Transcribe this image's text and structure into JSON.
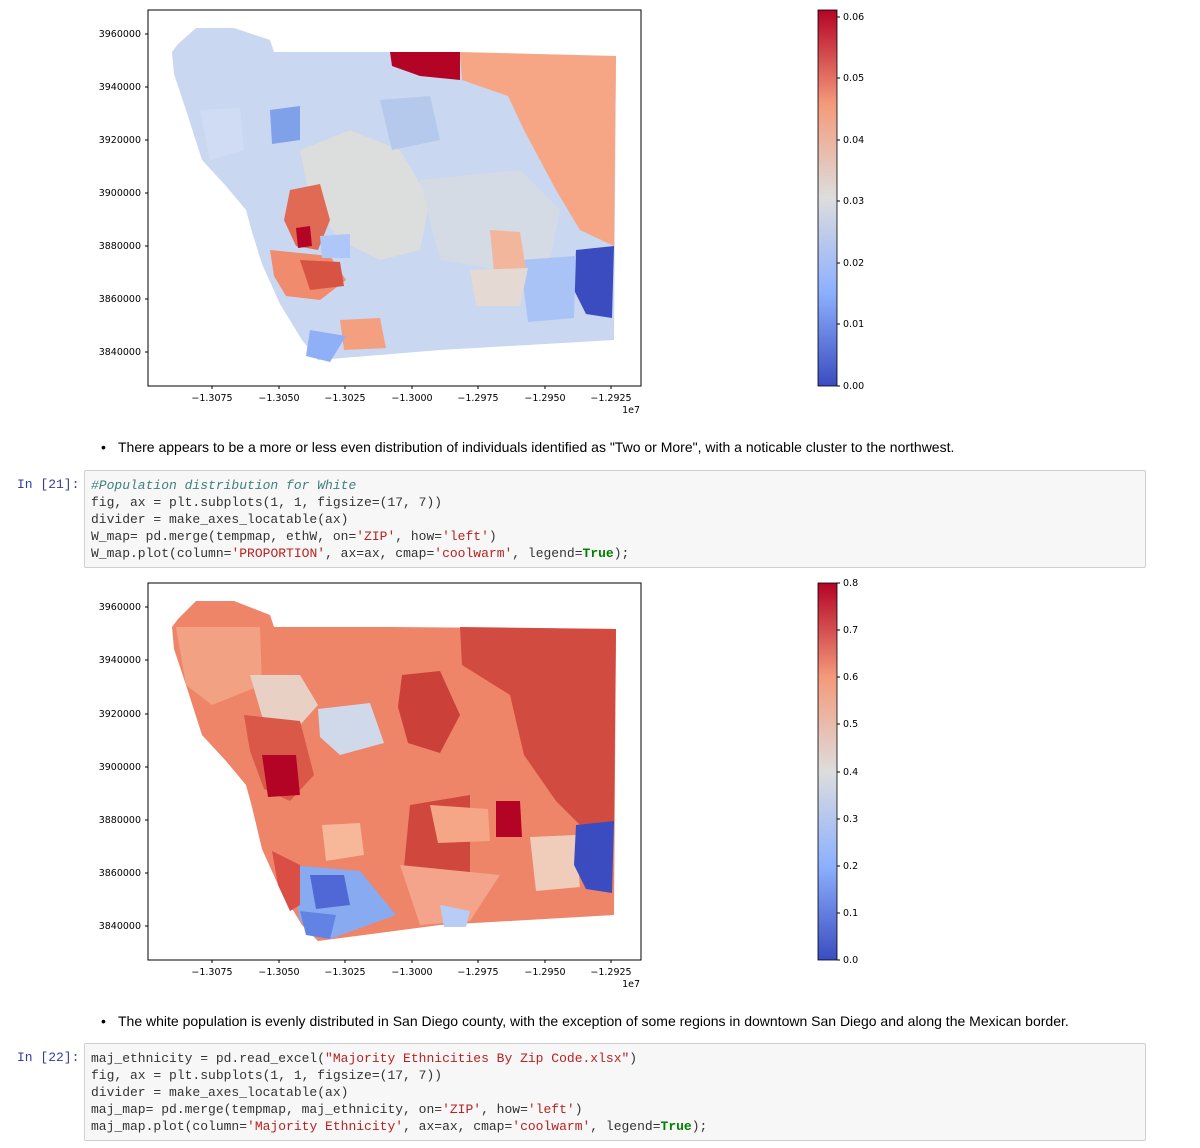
{
  "notebook": {
    "figure1": {
      "colorbar": {
        "ticks": [
          "0.06",
          "0.05",
          "0.04",
          "0.03",
          "0.02",
          "0.01",
          "0.00"
        ],
        "vmin": 0,
        "vmax": 0.06,
        "cmap": "coolwarm"
      },
      "y_ticks": [
        "3960000",
        "3940000",
        "3920000",
        "3900000",
        "3880000",
        "3860000",
        "3840000"
      ],
      "x_ticks": [
        "−1.3075",
        "−1.3050",
        "−1.3025",
        "−1.3000",
        "−1.2975",
        "−1.2950",
        "−1.2925"
      ],
      "x_offset": "1e7"
    },
    "markdown1": "There appears to be a more or less even distribution of individuals identified as \"Two or More\", with a noticable cluster to the northwest.",
    "cell21": {
      "prompt": "In [21]:",
      "lines": [
        [
          [
            "com",
            "#Population distribution for White"
          ]
        ],
        [
          [
            "p",
            "fig, ax = plt.subplots(1, 1, figsize=(17, 7))"
          ]
        ],
        [
          [
            "p",
            "divider = make_axes_locatable(ax)"
          ]
        ],
        [
          [
            "p",
            "W_map= pd.merge(tempmap, ethW, on="
          ],
          [
            "str",
            "'ZIP'"
          ],
          [
            "p",
            ", how="
          ],
          [
            "str",
            "'left'"
          ],
          [
            "p",
            ")"
          ]
        ],
        [
          [
            "p",
            "W_map.plot(column="
          ],
          [
            "str",
            "'PROPORTION'"
          ],
          [
            "p",
            ", ax=ax, cmap="
          ],
          [
            "str",
            "'coolwarm'"
          ],
          [
            "p",
            ", legend="
          ],
          [
            "kw",
            "True"
          ],
          [
            "p",
            ");"
          ]
        ]
      ]
    },
    "figure2": {
      "colorbar": {
        "ticks": [
          "0.8",
          "0.7",
          "0.6",
          "0.5",
          "0.4",
          "0.3",
          "0.2",
          "0.1",
          "0.0"
        ],
        "vmin": 0,
        "vmax": 0.8,
        "cmap": "coolwarm"
      },
      "y_ticks": [
        "3960000",
        "3940000",
        "3920000",
        "3900000",
        "3880000",
        "3860000",
        "3840000"
      ],
      "x_ticks": [
        "−1.3075",
        "−1.3050",
        "−1.3025",
        "−1.3000",
        "−1.2975",
        "−1.2950",
        "−1.2925"
      ],
      "x_offset": "1e7"
    },
    "markdown2": "The white population is evenly distributed in San Diego county, with the exception of some regions in downtown San Diego and along the Mexican border.",
    "cell22": {
      "prompt": "In [22]:",
      "lines": [
        [
          [
            "p",
            "maj_ethnicity = pd.read_excel("
          ],
          [
            "str",
            "\"Majority Ethnicities By Zip Code.xlsx\""
          ],
          [
            "p",
            ")"
          ]
        ],
        [
          [
            "p",
            "fig, ax = plt.subplots(1, 1, figsize=(17, 7))"
          ]
        ],
        [
          [
            "p",
            "divider = make_axes_locatable(ax)"
          ]
        ],
        [
          [
            "p",
            "maj_map= pd.merge(tempmap, maj_ethnicity, on="
          ],
          [
            "str",
            "'ZIP'"
          ],
          [
            "p",
            ", how="
          ],
          [
            "str",
            "'left'"
          ],
          [
            "p",
            ")"
          ]
        ],
        [
          [
            "p",
            "maj_map.plot(column="
          ],
          [
            "str",
            "'Majority Ethnicity'"
          ],
          [
            "p",
            ", ax=ax, cmap="
          ],
          [
            "str",
            "'coolwarm'"
          ],
          [
            "p",
            ", legend="
          ],
          [
            "kw",
            "True"
          ],
          [
            "p",
            ");"
          ]
        ]
      ]
    },
    "colors": {
      "cool": "#3b4cc0",
      "neutral": "#dddddd",
      "warm": "#b40426"
    }
  }
}
